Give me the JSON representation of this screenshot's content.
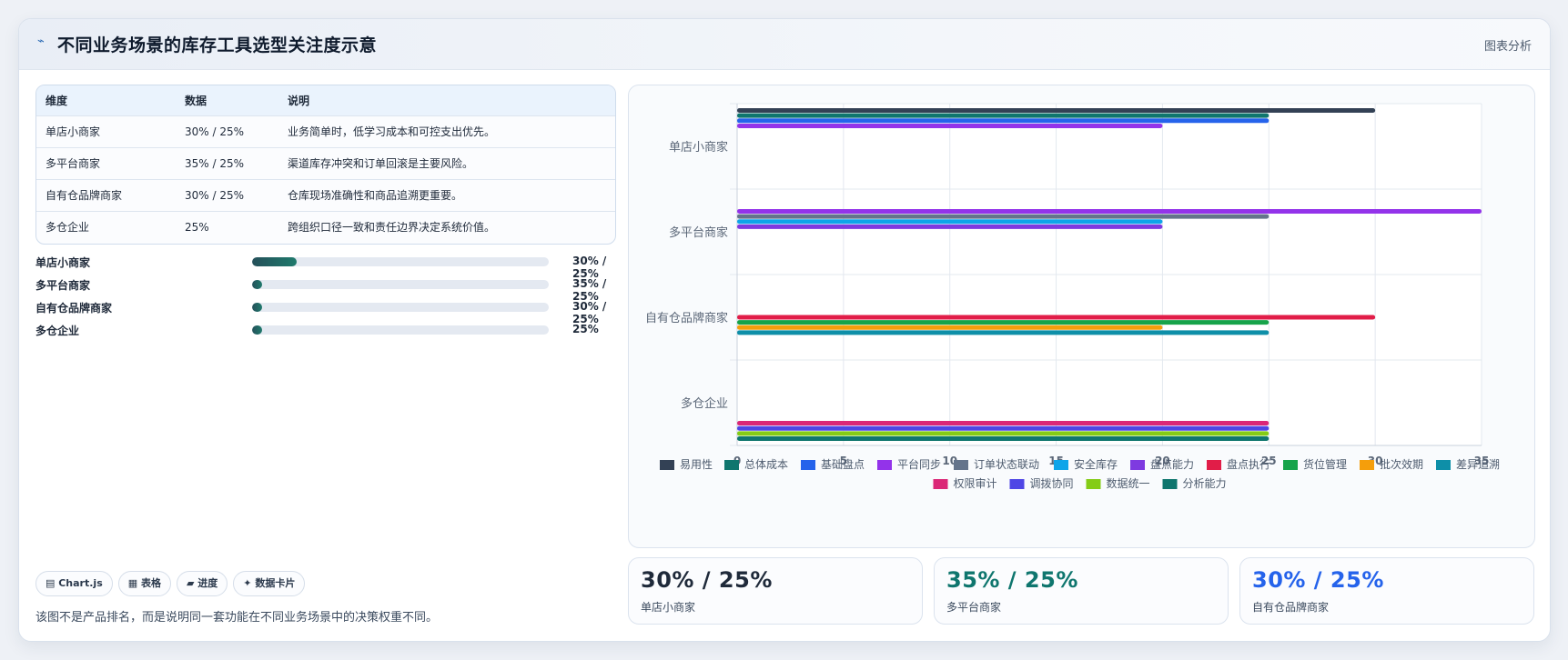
{
  "header": {
    "title": "不同业务场景的库存工具选型关注度示意",
    "tag": "图表分析"
  },
  "table": {
    "headers": [
      "维度",
      "数据",
      "说明"
    ],
    "rows": [
      [
        "单店小商家",
        "30% / 25%",
        "业务简单时，低学习成本和可控支出优先。"
      ],
      [
        "多平台商家",
        "35% / 25%",
        "渠道库存冲突和订单回滚是主要风险。"
      ],
      [
        "自有仓品牌商家",
        "30% / 25%",
        "仓库现场准确性和商品追溯更重要。"
      ],
      [
        "多仓企业",
        "25%",
        "跨组织口径一致和责任边界决定系统价值。"
      ]
    ]
  },
  "progress": [
    {
      "label": "单店小商家",
      "value": "30% / 25%",
      "fill": 0.15
    },
    {
      "label": "多平台商家",
      "value": "35% / 25%",
      "fill": 0.035
    },
    {
      "label": "自有仓品牌商家",
      "value": "30% / 25%",
      "fill": 0.035
    },
    {
      "label": "多仓企业",
      "value": "25%",
      "fill": 0.035
    }
  ],
  "chips": [
    "Chart.js",
    "表格",
    "进度",
    "数据卡片"
  ],
  "note": "该图不是产品排名，而是说明同一套功能在不同业务场景中的决策权重不同。",
  "stats": [
    {
      "value": "30% / 25%",
      "label": "单店小商家",
      "color": "#1f2a3a"
    },
    {
      "value": "35% / 25%",
      "label": "多平台商家",
      "color": "#0f766e"
    },
    {
      "value": "30% / 25%",
      "label": "自有仓品牌商家",
      "color": "#2563eb"
    }
  ],
  "chart_data": {
    "type": "bar",
    "orientation": "horizontal",
    "categories": [
      "单店小商家",
      "多平台商家",
      "自有仓品牌商家",
      "多仓企业"
    ],
    "xlim": [
      0,
      35
    ],
    "xticks": [
      0,
      5,
      10,
      15,
      20,
      25,
      30,
      35
    ],
    "grid": true,
    "legend_position": "bottom",
    "series": [
      {
        "name": "易用性",
        "color": "#334155",
        "values": [
          30,
          null,
          null,
          null
        ]
      },
      {
        "name": "总体成本",
        "color": "#0f766e",
        "values": [
          25,
          null,
          null,
          null
        ]
      },
      {
        "name": "基础盘点",
        "color": "#2563eb",
        "values": [
          25,
          null,
          null,
          null
        ]
      },
      {
        "name": "平台同步",
        "color": "#9333ea",
        "values": [
          20,
          35,
          null,
          null
        ]
      },
      {
        "name": "订单状态联动",
        "color": "#64748b",
        "values": [
          null,
          25,
          null,
          null
        ]
      },
      {
        "name": "安全库存",
        "color": "#0ea5e9",
        "values": [
          null,
          20,
          null,
          null
        ]
      },
      {
        "name": "盘点能力",
        "color": "#7e3ae0",
        "values": [
          null,
          20,
          null,
          null
        ]
      },
      {
        "name": "盘点执行",
        "color": "#e11d48",
        "values": [
          null,
          null,
          30,
          null
        ]
      },
      {
        "name": "货位管理",
        "color": "#16a34a",
        "values": [
          null,
          null,
          25,
          null
        ]
      },
      {
        "name": "批次效期",
        "color": "#f59e0b",
        "values": [
          null,
          null,
          20,
          null
        ]
      },
      {
        "name": "差异追溯",
        "color": "#0e8fa8",
        "values": [
          null,
          null,
          25,
          null
        ]
      },
      {
        "name": "权限审计",
        "color": "#db2777",
        "values": [
          null,
          null,
          null,
          25
        ]
      },
      {
        "name": "调拨协同",
        "color": "#4f46e5",
        "values": [
          null,
          null,
          null,
          25
        ]
      },
      {
        "name": "数据统一",
        "color": "#84cc16",
        "values": [
          null,
          null,
          null,
          25
        ]
      },
      {
        "name": "分析能力",
        "color": "#0f766e",
        "values": [
          null,
          null,
          null,
          25
        ]
      }
    ]
  }
}
